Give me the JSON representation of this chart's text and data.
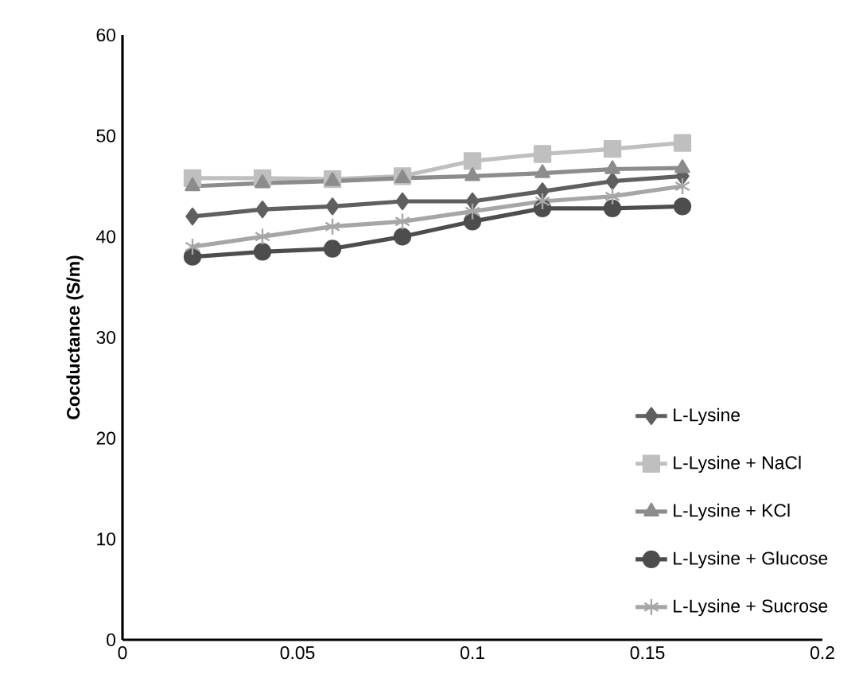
{
  "chart_data": {
    "type": "line",
    "ylabel": "Cocductance (S/m)",
    "x": [
      0.02,
      0.04,
      0.06,
      0.08,
      0.1,
      0.12,
      0.14,
      0.16
    ],
    "series": [
      {
        "name": "L-Lysine",
        "color": "#5f5f5f",
        "marker": "diamond",
        "values": [
          42,
          42.7,
          43,
          43.5,
          43.5,
          44.5,
          45.5,
          46
        ]
      },
      {
        "name": "L-Lysine + NaCl",
        "color": "#bfbfbf",
        "marker": "square",
        "values": [
          45.8,
          45.8,
          45.7,
          46,
          47.5,
          48.2,
          48.7,
          49.3
        ]
      },
      {
        "name": "L-Lysine + KCl",
        "color": "#8c8c8c",
        "marker": "triangle",
        "values": [
          45,
          45.3,
          45.5,
          45.8,
          46,
          46.3,
          46.7,
          46.8
        ]
      },
      {
        "name": "L-Lysine + Glucose",
        "color": "#4d4d4d",
        "marker": "circle",
        "values": [
          38,
          38.5,
          38.8,
          40,
          41.5,
          42.8,
          42.8,
          43
        ]
      },
      {
        "name": "L-Lysine + Sucrose",
        "color": "#a6a6a6",
        "marker": "cross",
        "values": [
          39,
          40,
          41,
          41.5,
          42.5,
          43.5,
          44,
          45
        ]
      }
    ],
    "xlim": [
      0,
      0.2
    ],
    "xticks": [
      0,
      0.05,
      0.1,
      0.15,
      0.2
    ],
    "ylim": [
      0,
      60
    ],
    "yticks": [
      0,
      10,
      20,
      30,
      40,
      50,
      60
    ],
    "grid": false,
    "legend": "bottom right",
    "line_style": "solid"
  }
}
